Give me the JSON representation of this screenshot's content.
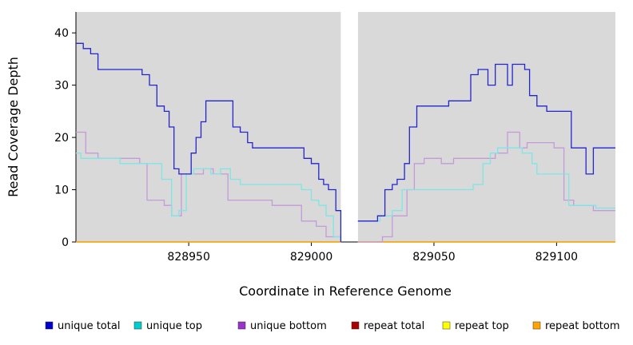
{
  "page": {
    "background": "#ffffff"
  },
  "chart_data": {
    "type": "line",
    "step": true,
    "title": "",
    "xlabel": "Coordinate in Reference Genome",
    "ylabel": "Read Coverage Depth",
    "xlim": [
      828904,
      829124
    ],
    "ylim": [
      0,
      44
    ],
    "xticks": [
      828950,
      829000,
      829050,
      829100
    ],
    "yticks": [
      0,
      10,
      20,
      30,
      40
    ],
    "plot_bg": "#d9d9d9",
    "grid": false,
    "legend_position": "bottom",
    "gap_band": {
      "x0": 829012,
      "x1": 829019,
      "color": "#ffffff"
    },
    "draw_order": [
      3,
      4,
      5,
      2,
      1,
      0
    ],
    "series": [
      {
        "name": "unique total",
        "color": "#2525cd",
        "legend_color": "#0000cc",
        "segments": [
          [
            [
              828904,
              38
            ],
            [
              828907,
              37
            ],
            [
              828910,
              36
            ],
            [
              828913,
              33
            ],
            [
              828931,
              32
            ],
            [
              828934,
              30
            ],
            [
              828937,
              26
            ],
            [
              828940,
              25
            ],
            [
              828942,
              22
            ],
            [
              828944,
              14
            ],
            [
              828946,
              13
            ],
            [
              828951,
              17
            ],
            [
              828953,
              20
            ],
            [
              828955,
              23
            ],
            [
              828957,
              27
            ],
            [
              828968,
              22
            ],
            [
              828971,
              21
            ],
            [
              828974,
              19
            ],
            [
              828976,
              18
            ],
            [
              828997,
              16
            ],
            [
              829000,
              15
            ],
            [
              829003,
              12
            ],
            [
              829005,
              11
            ],
            [
              829007,
              10
            ],
            [
              829010,
              6
            ],
            [
              829012,
              0
            ]
          ],
          [
            [
              829019,
              4
            ],
            [
              829027,
              5
            ],
            [
              829030,
              10
            ],
            [
              829033,
              11
            ],
            [
              829035,
              12
            ],
            [
              829038,
              15
            ],
            [
              829040,
              22
            ],
            [
              829043,
              26
            ],
            [
              829056,
              27
            ],
            [
              829065,
              32
            ],
            [
              829068,
              33
            ],
            [
              829072,
              30
            ],
            [
              829075,
              34
            ],
            [
              829080,
              30
            ],
            [
              829082,
              34
            ],
            [
              829087,
              33
            ],
            [
              829089,
              28
            ],
            [
              829092,
              26
            ],
            [
              829096,
              25
            ],
            [
              829106,
              18
            ],
            [
              829112,
              13
            ],
            [
              829115,
              18
            ],
            [
              829124,
              18
            ]
          ]
        ]
      },
      {
        "name": "unique top",
        "color": "#7fe5e5",
        "legend_color": "#00cdcd",
        "segments": [
          [
            [
              828904,
              17
            ],
            [
              828906,
              16
            ],
            [
              828922,
              15
            ],
            [
              828939,
              12
            ],
            [
              828943,
              5
            ],
            [
              828946,
              6
            ],
            [
              828949,
              13
            ],
            [
              828952,
              14
            ],
            [
              828959,
              13
            ],
            [
              828963,
              14
            ],
            [
              828967,
              12
            ],
            [
              828971,
              11
            ],
            [
              828996,
              10
            ],
            [
              829000,
              8
            ],
            [
              829003,
              7
            ],
            [
              829006,
              5
            ],
            [
              829009,
              1
            ],
            [
              829012,
              0
            ]
          ],
          [
            [
              829019,
              4
            ],
            [
              829028,
              5
            ],
            [
              829033,
              6
            ],
            [
              829037,
              10
            ],
            [
              829066,
              11
            ],
            [
              829070,
              15
            ],
            [
              829073,
              17
            ],
            [
              829076,
              18
            ],
            [
              829086,
              17
            ],
            [
              829090,
              15
            ],
            [
              829092,
              13
            ],
            [
              829105,
              7
            ],
            [
              829116,
              6.5
            ],
            [
              829124,
              6.5
            ]
          ]
        ]
      },
      {
        "name": "unique bottom",
        "color": "#c49ad8",
        "legend_color": "#9933cc",
        "segments": [
          [
            [
              828904,
              21
            ],
            [
              828908,
              17
            ],
            [
              828913,
              16
            ],
            [
              828930,
              15
            ],
            [
              828933,
              8
            ],
            [
              828940,
              7
            ],
            [
              828943,
              5
            ],
            [
              828947,
              13
            ],
            [
              828956,
              14
            ],
            [
              828960,
              13
            ],
            [
              828966,
              8
            ],
            [
              828984,
              7
            ],
            [
              828996,
              4
            ],
            [
              829002,
              3
            ],
            [
              829006,
              1
            ],
            [
              829012,
              0
            ]
          ],
          [
            [
              829019,
              0
            ],
            [
              829029,
              1
            ],
            [
              829033,
              5
            ],
            [
              829039,
              10
            ],
            [
              829042,
              15
            ],
            [
              829046,
              16
            ],
            [
              829053,
              15
            ],
            [
              829058,
              16
            ],
            [
              829075,
              17
            ],
            [
              829080,
              21
            ],
            [
              829085,
              18
            ],
            [
              829088,
              19
            ],
            [
              829099,
              18
            ],
            [
              829103,
              8
            ],
            [
              829107,
              7
            ],
            [
              829115,
              6
            ],
            [
              829124,
              6
            ]
          ]
        ]
      },
      {
        "name": "repeat total",
        "color": "#aa0000",
        "legend_color": "#aa0000",
        "segments": [
          [
            [
              828904,
              0
            ],
            [
              829012,
              0
            ]
          ],
          [
            [
              829019,
              0
            ],
            [
              829124,
              0
            ]
          ]
        ]
      },
      {
        "name": "repeat top",
        "color": "#ffff00",
        "legend_color": "#ffff00",
        "segments": [
          [
            [
              828904,
              0
            ],
            [
              829012,
              0
            ]
          ],
          [
            [
              829019,
              0
            ],
            [
              829124,
              0
            ]
          ]
        ]
      },
      {
        "name": "repeat bottom",
        "color": "#ffa500",
        "legend_color": "#ffa500",
        "segments": [
          [
            [
              828904,
              0
            ],
            [
              829012,
              0
            ]
          ],
          [
            [
              829019,
              0
            ],
            [
              829124,
              0
            ]
          ]
        ]
      }
    ]
  }
}
